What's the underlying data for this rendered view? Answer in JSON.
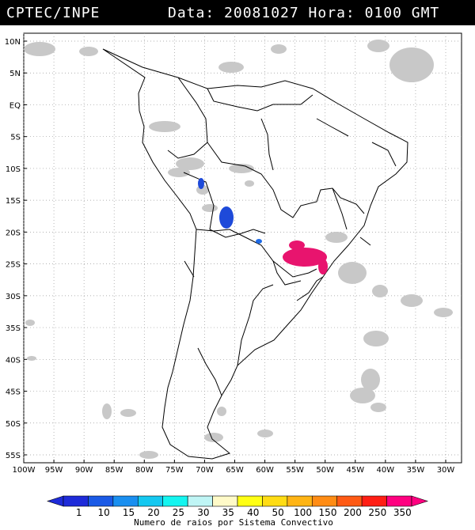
{
  "header": {
    "title": "CPTEC/INPE",
    "datetime": "Data: 20081027 Hora: 0100 GMT"
  },
  "map": {
    "lat_labels": [
      "10N",
      "5N",
      "EQ",
      "5S",
      "10S",
      "15S",
      "20S",
      "25S",
      "30S",
      "35S",
      "40S",
      "45S",
      "50S",
      "55S"
    ],
    "lon_labels": [
      "100W",
      "95W",
      "90W",
      "85W",
      "80W",
      "75W",
      "70W",
      "65W",
      "60W",
      "55W",
      "50W",
      "45W",
      "40W",
      "35W",
      "30W"
    ]
  },
  "legend": {
    "values": [
      "1",
      "10",
      "15",
      "20",
      "25",
      "30",
      "35",
      "40",
      "50",
      "100",
      "150",
      "200",
      "250",
      "350"
    ],
    "colors": [
      "#1e2bd9",
      "#1a5ae6",
      "#1a8ff0",
      "#14c8f0",
      "#14f5f0",
      "#bff5f5",
      "#fffac8",
      "#ffff14",
      "#ffdc14",
      "#ffb414",
      "#ff8c14",
      "#ff5a14",
      "#ff1e14",
      "#ff0080"
    ],
    "caption": "Numero de raios por Sistema Convectivo"
  }
}
